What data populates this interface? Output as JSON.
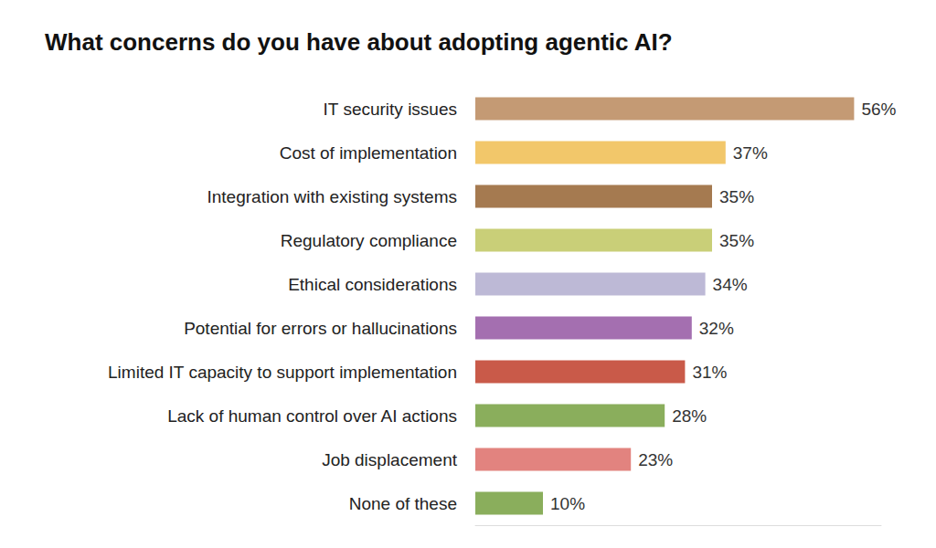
{
  "chart_data": {
    "type": "bar",
    "orientation": "horizontal",
    "title": "What concerns do you have about adopting agentic AI?",
    "categories": [
      "IT security issues",
      "Cost of implementation",
      "Integration with existing systems",
      "Regulatory compliance",
      "Ethical considerations",
      "Potential for errors or hallucinations",
      "Limited IT capacity to support implementation",
      "Lack of human control over AI actions",
      "Job displacement",
      "None of these"
    ],
    "values": [
      56,
      37,
      35,
      35,
      34,
      32,
      31,
      28,
      23,
      10
    ],
    "value_labels": [
      "56%",
      "37%",
      "35%",
      "35%",
      "34%",
      "32%",
      "31%",
      "28%",
      "23%",
      "10%"
    ],
    "colors": [
      "#c49a74",
      "#f2c76a",
      "#a57a50",
      "#c9cf78",
      "#bdb9d6",
      "#a46fb0",
      "#c95a49",
      "#8aae5c",
      "#e2837f",
      "#8aae5c"
    ],
    "xlim": [
      0,
      60
    ],
    "grid": false,
    "data_labels": true,
    "tick_labels": "y"
  }
}
